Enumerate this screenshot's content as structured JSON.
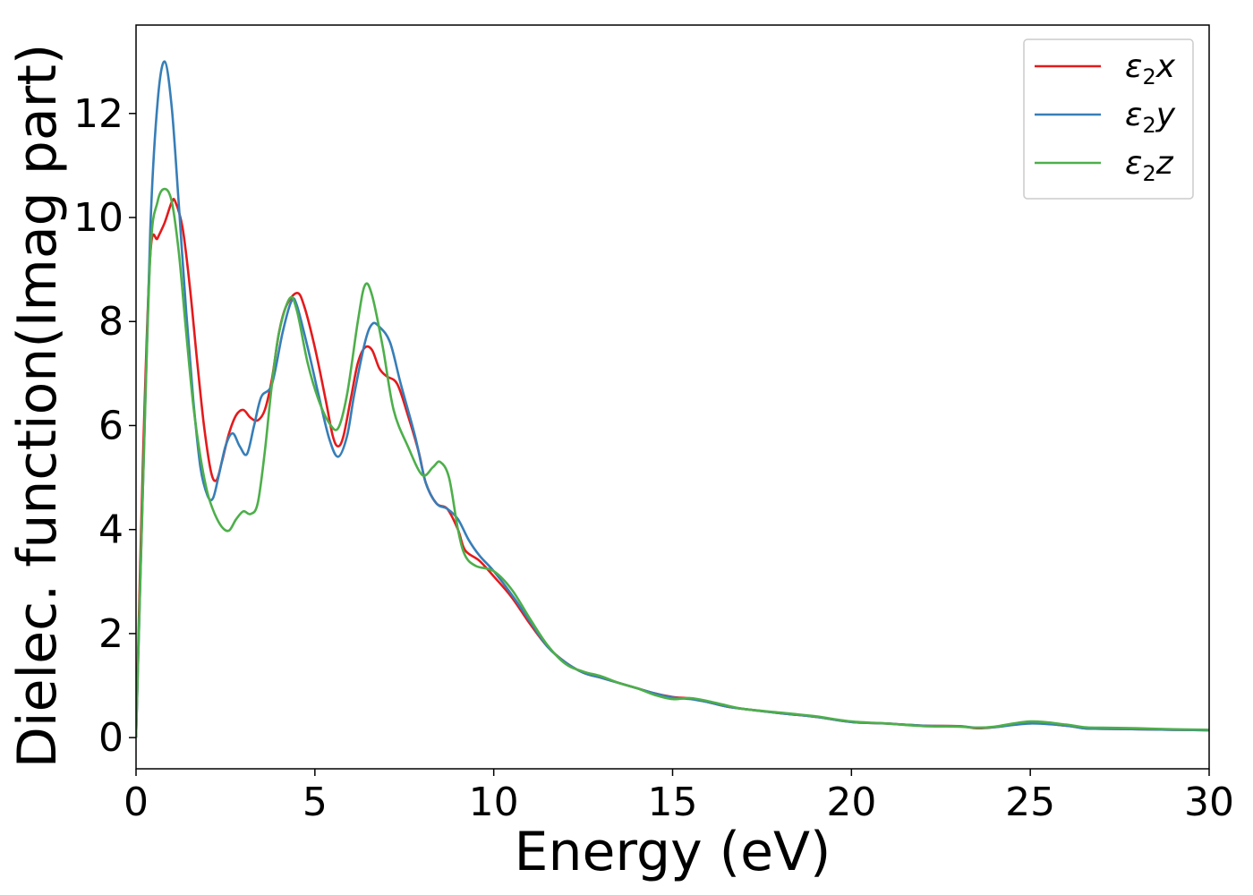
{
  "chart_data": {
    "type": "line",
    "title": "",
    "xlabel": "Energy (eV)",
    "ylabel": "Dielec. function(Imag part)",
    "xlim": [
      0,
      30
    ],
    "ylim": [
      -0.6,
      13.7
    ],
    "xticks": [
      0,
      5,
      10,
      15,
      20,
      25,
      30
    ],
    "yticks": [
      0,
      2,
      4,
      6,
      8,
      10,
      12
    ],
    "grid": false,
    "legend": {
      "position": "top-right"
    },
    "series": [
      {
        "name": "ε₂x",
        "legend_base": "ε",
        "legend_sub": "2",
        "legend_suffix": "x",
        "color": "#e41a1c",
        "points": [
          [
            0,
            0
          ],
          [
            0.2,
            5.5
          ],
          [
            0.4,
            9.3
          ],
          [
            0.6,
            9.6
          ],
          [
            0.8,
            9.9
          ],
          [
            1.0,
            10.3
          ],
          [
            1.1,
            10.3
          ],
          [
            1.3,
            9.8
          ],
          [
            1.5,
            8.7
          ],
          [
            1.7,
            7.3
          ],
          [
            1.9,
            6.0
          ],
          [
            2.1,
            5.1
          ],
          [
            2.25,
            4.95
          ],
          [
            2.4,
            5.3
          ],
          [
            2.6,
            5.85
          ],
          [
            2.8,
            6.2
          ],
          [
            3.0,
            6.3
          ],
          [
            3.2,
            6.15
          ],
          [
            3.4,
            6.1
          ],
          [
            3.6,
            6.3
          ],
          [
            3.8,
            6.9
          ],
          [
            4.0,
            7.8
          ],
          [
            4.2,
            8.3
          ],
          [
            4.5,
            8.55
          ],
          [
            4.7,
            8.3
          ],
          [
            5.0,
            7.5
          ],
          [
            5.3,
            6.5
          ],
          [
            5.5,
            5.8
          ],
          [
            5.65,
            5.6
          ],
          [
            5.8,
            5.8
          ],
          [
            6.0,
            6.5
          ],
          [
            6.2,
            7.2
          ],
          [
            6.4,
            7.5
          ],
          [
            6.6,
            7.45
          ],
          [
            6.8,
            7.1
          ],
          [
            7.0,
            6.95
          ],
          [
            7.3,
            6.8
          ],
          [
            7.6,
            6.2
          ],
          [
            7.9,
            5.5
          ],
          [
            8.1,
            4.9
          ],
          [
            8.4,
            4.5
          ],
          [
            8.7,
            4.4
          ],
          [
            9.0,
            4.0
          ],
          [
            9.2,
            3.6
          ],
          [
            9.6,
            3.4
          ],
          [
            10,
            3.1
          ],
          [
            10.5,
            2.7
          ],
          [
            11,
            2.2
          ],
          [
            11.5,
            1.75
          ],
          [
            12,
            1.45
          ],
          [
            12.5,
            1.25
          ],
          [
            13,
            1.15
          ],
          [
            13.5,
            1.05
          ],
          [
            14,
            0.95
          ],
          [
            14.5,
            0.85
          ],
          [
            15,
            0.78
          ],
          [
            15.5,
            0.75
          ],
          [
            16,
            0.68
          ],
          [
            16.5,
            0.6
          ],
          [
            17,
            0.55
          ],
          [
            18,
            0.47
          ],
          [
            19,
            0.4
          ],
          [
            20,
            0.3
          ],
          [
            21,
            0.27
          ],
          [
            22,
            0.23
          ],
          [
            23,
            0.22
          ],
          [
            23.5,
            0.18
          ],
          [
            24,
            0.2
          ],
          [
            25,
            0.28
          ],
          [
            26,
            0.23
          ],
          [
            26.5,
            0.18
          ],
          [
            27,
            0.17
          ],
          [
            28,
            0.16
          ],
          [
            29,
            0.15
          ],
          [
            30,
            0.14
          ]
        ]
      },
      {
        "name": "ε₂y",
        "legend_base": "ε",
        "legend_sub": "2",
        "legend_suffix": "y",
        "color": "#377eb8",
        "points": [
          [
            0,
            0
          ],
          [
            0.2,
            5.0
          ],
          [
            0.4,
            9.8
          ],
          [
            0.6,
            12.2
          ],
          [
            0.8,
            13.0
          ],
          [
            1.0,
            12.1
          ],
          [
            1.2,
            10.2
          ],
          [
            1.4,
            8.2
          ],
          [
            1.6,
            6.5
          ],
          [
            1.8,
            5.2
          ],
          [
            2.0,
            4.65
          ],
          [
            2.15,
            4.6
          ],
          [
            2.3,
            5.0
          ],
          [
            2.5,
            5.6
          ],
          [
            2.7,
            5.85
          ],
          [
            2.9,
            5.6
          ],
          [
            3.1,
            5.45
          ],
          [
            3.3,
            6.0
          ],
          [
            3.5,
            6.55
          ],
          [
            3.8,
            6.8
          ],
          [
            4.1,
            7.8
          ],
          [
            4.35,
            8.4
          ],
          [
            4.5,
            8.3
          ],
          [
            4.8,
            7.5
          ],
          [
            5.1,
            6.6
          ],
          [
            5.4,
            5.75
          ],
          [
            5.65,
            5.4
          ],
          [
            5.9,
            5.8
          ],
          [
            6.1,
            6.6
          ],
          [
            6.4,
            7.6
          ],
          [
            6.6,
            7.95
          ],
          [
            6.8,
            7.9
          ],
          [
            7.1,
            7.6
          ],
          [
            7.4,
            6.8
          ],
          [
            7.8,
            5.8
          ],
          [
            8.1,
            4.9
          ],
          [
            8.4,
            4.5
          ],
          [
            8.7,
            4.4
          ],
          [
            9.0,
            4.2
          ],
          [
            9.3,
            3.8
          ],
          [
            9.6,
            3.5
          ],
          [
            10,
            3.2
          ],
          [
            10.5,
            2.75
          ],
          [
            11,
            2.25
          ],
          [
            11.5,
            1.75
          ],
          [
            12,
            1.45
          ],
          [
            12.5,
            1.25
          ],
          [
            13,
            1.15
          ],
          [
            13.5,
            1.05
          ],
          [
            14,
            0.95
          ],
          [
            14.5,
            0.85
          ],
          [
            15,
            0.77
          ],
          [
            15.5,
            0.74
          ],
          [
            16,
            0.68
          ],
          [
            16.5,
            0.6
          ],
          [
            17,
            0.55
          ],
          [
            18,
            0.47
          ],
          [
            19,
            0.4
          ],
          [
            20,
            0.3
          ],
          [
            21,
            0.27
          ],
          [
            22,
            0.23
          ],
          [
            23,
            0.22
          ],
          [
            23.5,
            0.19
          ],
          [
            24,
            0.2
          ],
          [
            25,
            0.27
          ],
          [
            26,
            0.23
          ],
          [
            26.5,
            0.18
          ],
          [
            27,
            0.17
          ],
          [
            28,
            0.16
          ],
          [
            29,
            0.15
          ],
          [
            30,
            0.14
          ]
        ]
      },
      {
        "name": "ε₂z",
        "legend_base": "ε",
        "legend_sub": "2",
        "legend_suffix": "z",
        "color": "#4daf4a",
        "points": [
          [
            0,
            0
          ],
          [
            0.2,
            5.0
          ],
          [
            0.4,
            9.3
          ],
          [
            0.6,
            10.3
          ],
          [
            0.8,
            10.55
          ],
          [
            1.0,
            10.3
          ],
          [
            1.2,
            9.3
          ],
          [
            1.4,
            7.8
          ],
          [
            1.6,
            6.4
          ],
          [
            1.8,
            5.4
          ],
          [
            2.0,
            4.7
          ],
          [
            2.2,
            4.3
          ],
          [
            2.4,
            4.05
          ],
          [
            2.6,
            3.98
          ],
          [
            2.8,
            4.2
          ],
          [
            3.0,
            4.35
          ],
          [
            3.2,
            4.3
          ],
          [
            3.4,
            4.5
          ],
          [
            3.6,
            5.5
          ],
          [
            3.8,
            6.8
          ],
          [
            4.0,
            7.8
          ],
          [
            4.3,
            8.45
          ],
          [
            4.5,
            8.2
          ],
          [
            4.8,
            7.2
          ],
          [
            5.1,
            6.5
          ],
          [
            5.4,
            6.05
          ],
          [
            5.65,
            5.95
          ],
          [
            5.9,
            6.6
          ],
          [
            6.2,
            8.0
          ],
          [
            6.4,
            8.7
          ],
          [
            6.6,
            8.5
          ],
          [
            6.9,
            7.5
          ],
          [
            7.2,
            6.3
          ],
          [
            7.6,
            5.6
          ],
          [
            8.0,
            5.05
          ],
          [
            8.3,
            5.2
          ],
          [
            8.5,
            5.3
          ],
          [
            8.75,
            5.0
          ],
          [
            9.0,
            4.0
          ],
          [
            9.2,
            3.5
          ],
          [
            9.5,
            3.3
          ],
          [
            10,
            3.2
          ],
          [
            10.5,
            2.85
          ],
          [
            11,
            2.3
          ],
          [
            11.5,
            1.78
          ],
          [
            12,
            1.42
          ],
          [
            12.5,
            1.27
          ],
          [
            13,
            1.18
          ],
          [
            13.5,
            1.05
          ],
          [
            14,
            0.95
          ],
          [
            14.5,
            0.82
          ],
          [
            15,
            0.74
          ],
          [
            15.5,
            0.76
          ],
          [
            16,
            0.7
          ],
          [
            16.5,
            0.62
          ],
          [
            17,
            0.55
          ],
          [
            18,
            0.48
          ],
          [
            19,
            0.41
          ],
          [
            20,
            0.31
          ],
          [
            21,
            0.27
          ],
          [
            22,
            0.22
          ],
          [
            23,
            0.21
          ],
          [
            23.5,
            0.19
          ],
          [
            24,
            0.21
          ],
          [
            25,
            0.31
          ],
          [
            26,
            0.25
          ],
          [
            26.5,
            0.2
          ],
          [
            27,
            0.19
          ],
          [
            28,
            0.18
          ],
          [
            29,
            0.16
          ],
          [
            30,
            0.15
          ]
        ]
      }
    ]
  }
}
